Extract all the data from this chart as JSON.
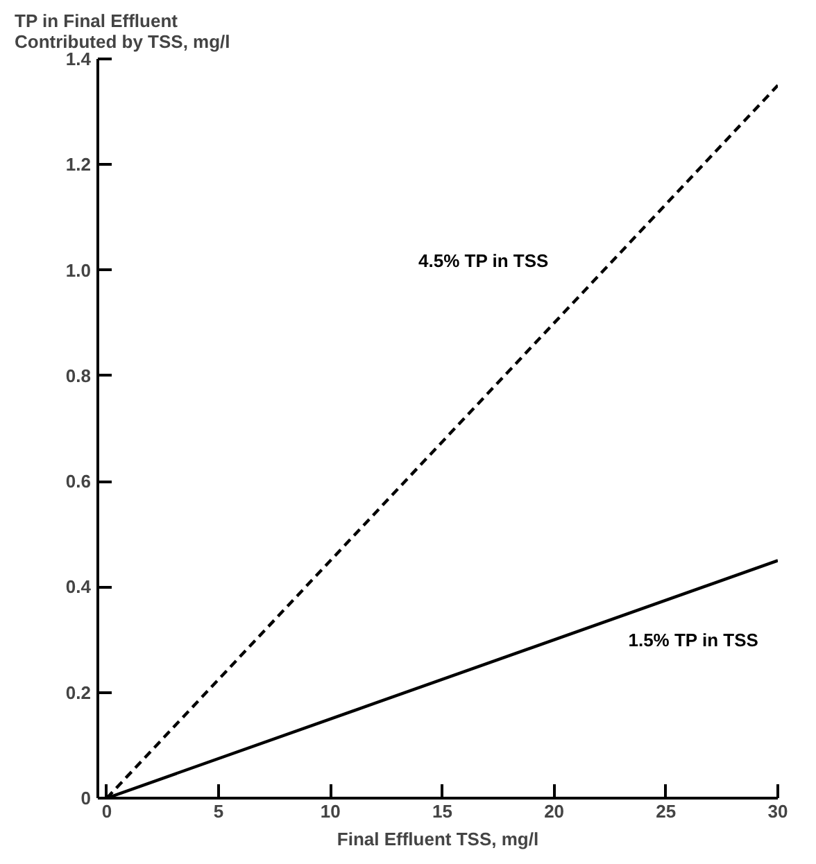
{
  "chart_data": {
    "type": "line",
    "ylabel": "TP in Final Effluent\nContributed by TSS, mg/l",
    "xlabel": "Final Effluent TSS, mg/l",
    "x": [
      0,
      30
    ],
    "series": [
      {
        "name": "4.5% TP in TSS",
        "color": "#000000",
        "values": [
          0,
          1.35
        ],
        "line_style": "dashed"
      },
      {
        "name": "1.5% TP in TSS",
        "color": "#000000",
        "values": [
          0,
          0.45
        ],
        "line_style": "solid"
      }
    ],
    "xlim": [
      -0.4,
      30
    ],
    "ylim": [
      0,
      1.4
    ],
    "xticks": [
      0,
      5,
      10,
      15,
      20,
      25,
      30
    ],
    "yticks": [
      0,
      0.2,
      0.4,
      0.6,
      0.8,
      {
        "value": 1,
        "label": "1.0"
      },
      1.2,
      1.4
    ],
    "grid": false,
    "marker": "none"
  }
}
